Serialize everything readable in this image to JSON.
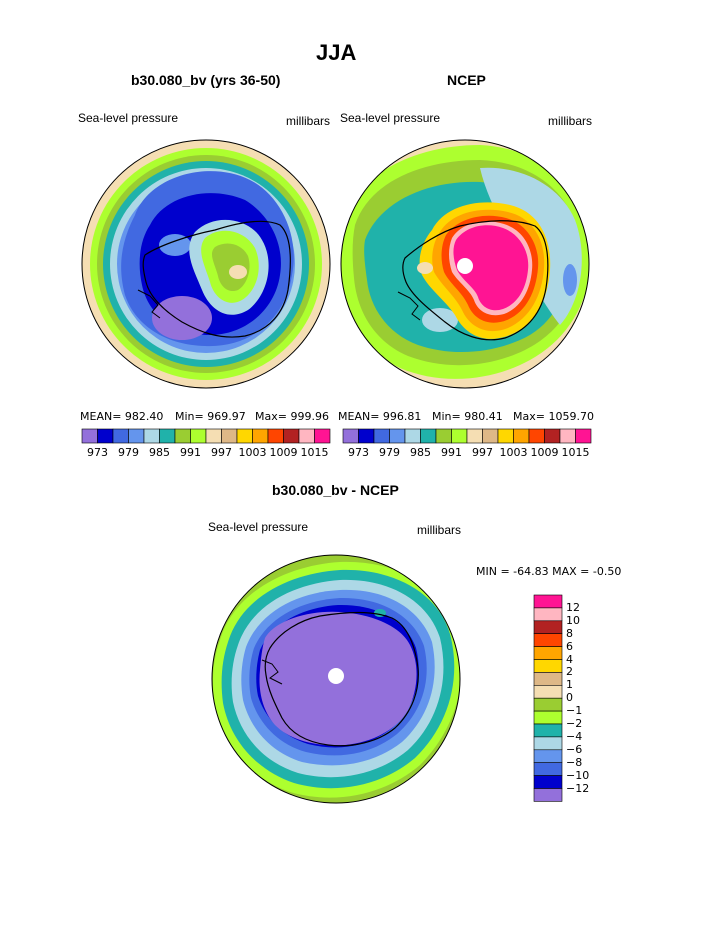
{
  "title": "JJA",
  "colors": [
    "#9370DB",
    "#0000CD",
    "#4169E1",
    "#6495ED",
    "#ADD8E6",
    "#20B2AA",
    "#9ACD32",
    "#ADFF2F",
    "#F5DEB3",
    "#DEB887",
    "#FFD700",
    "#FFA500",
    "#FF4500",
    "#B22222",
    "#FFB6C1",
    "#FF1493"
  ],
  "panels": [
    {
      "title": "b30.080_bv (yrs 36-50)",
      "left_label": "Sea-level pressure",
      "right_label": "millibars",
      "stats": {
        "mean": "MEAN= 982.40",
        "min": "Min= 969.97",
        "max": "Max= 999.96"
      }
    },
    {
      "title": "NCEP",
      "left_label": "Sea-level pressure",
      "right_label": "millibars",
      "stats": {
        "mean": "MEAN= 996.81",
        "min": "Min= 980.41",
        "max": "Max= 1059.70"
      }
    },
    {
      "title": "b30.080_bv - NCEP",
      "left_label": "Sea-level pressure",
      "right_label": "millibars",
      "stats": {
        "minmax": "MIN = -64.83 MAX =  -0.50"
      }
    }
  ],
  "top_colorbar": {
    "ticks": [
      "973",
      "979",
      "985",
      "991",
      "997",
      "1003",
      "1009",
      "1015"
    ]
  },
  "diff_colorbar": {
    "labels": [
      "12",
      "10",
      "8",
      "6",
      "4",
      "2",
      "1",
      "0",
      "−1",
      "−2",
      "−4",
      "−6",
      "−8",
      "−10",
      "−12"
    ],
    "colors": [
      "#FF1493",
      "#FFB6C1",
      "#B22222",
      "#FF4500",
      "#FFA500",
      "#FFD700",
      "#DEB887",
      "#F5DEB3",
      "#9ACD32",
      "#ADFF2F",
      "#20B2AA",
      "#ADD8E6",
      "#6495ED",
      "#4169E1",
      "#0000CD",
      "#9370DB"
    ]
  }
}
